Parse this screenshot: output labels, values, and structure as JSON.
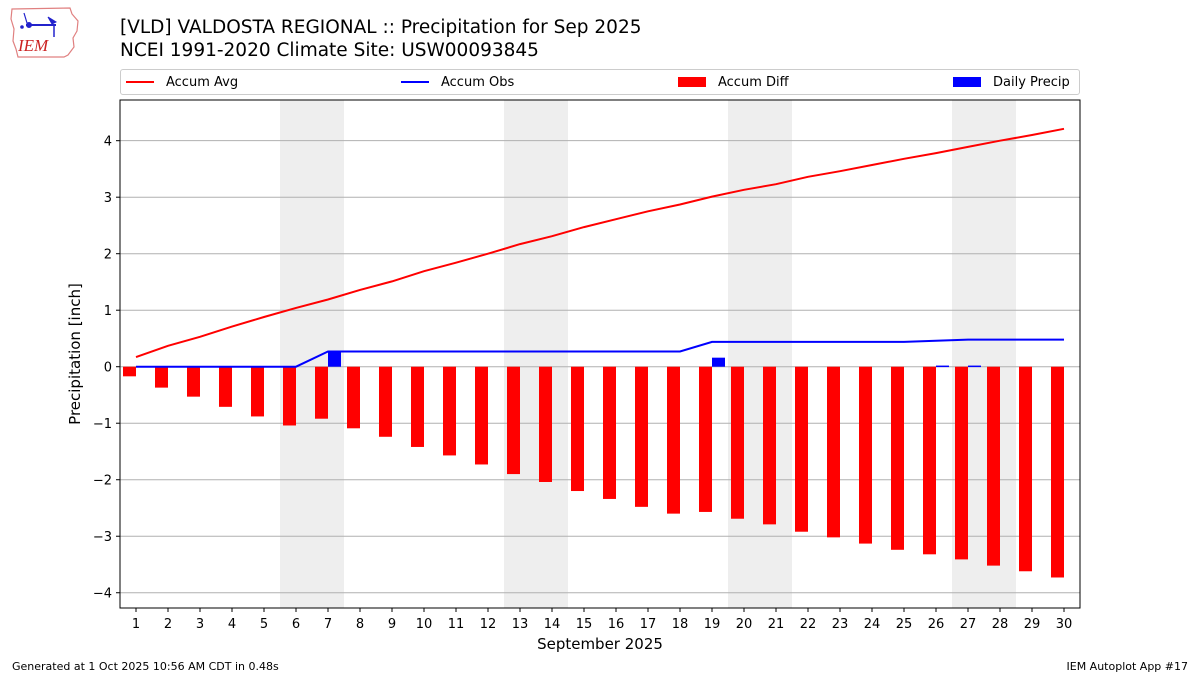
{
  "logo": {
    "text": "IEM"
  },
  "header": {
    "title_line1": "[VLD] VALDOSTA REGIONAL :: Precipitation for Sep 2025",
    "title_line2": "NCEI 1991-2020 Climate Site: USW00093845"
  },
  "legend": {
    "items": [
      {
        "label": "Accum Avg",
        "kind": "line",
        "color": "#ff0000"
      },
      {
        "label": "Accum Obs",
        "kind": "line",
        "color": "#0000ff"
      },
      {
        "label": "Accum Diff",
        "kind": "bar",
        "color": "#ff0000"
      },
      {
        "label": "Daily Precip",
        "kind": "bar",
        "color": "#0000ff"
      }
    ]
  },
  "chart_data": {
    "type": "bar",
    "title": "[VLD] VALDOSTA REGIONAL :: Precipitation for Sep 2025",
    "subtitle": "NCEI 1991-2020 Climate Site: USW00093845",
    "xlabel": "September 2025",
    "ylabel": "Precipitation [inch]",
    "xlim": [
      0.5,
      30.5
    ],
    "ylim": [
      -4.27,
      4.72
    ],
    "yticks": [
      -4,
      -3,
      -2,
      -1,
      0,
      1,
      2,
      3,
      4
    ],
    "ytick_labels": [
      "−4",
      "−3",
      "−2",
      "−1",
      "0",
      "1",
      "2",
      "3",
      "4"
    ],
    "grid": "horizontal",
    "legend_position": "top",
    "categories": [
      "1",
      "2",
      "3",
      "4",
      "5",
      "6",
      "7",
      "8",
      "9",
      "10",
      "11",
      "12",
      "13",
      "14",
      "15",
      "16",
      "17",
      "18",
      "19",
      "20",
      "21",
      "22",
      "23",
      "24",
      "25",
      "26",
      "27",
      "28",
      "29",
      "30"
    ],
    "weekend_shading": [
      [
        6,
        7
      ],
      [
        13,
        14
      ],
      [
        20,
        21
      ],
      [
        27,
        28
      ]
    ],
    "shade_color": "#eeeeee",
    "series": [
      {
        "name": "Accum Avg",
        "type": "line",
        "color": "#ff0000",
        "values": [
          0.17,
          0.37,
          0.53,
          0.71,
          0.88,
          1.04,
          1.19,
          1.36,
          1.51,
          1.69,
          1.84,
          2.0,
          2.17,
          2.31,
          2.47,
          2.61,
          2.75,
          2.87,
          3.01,
          3.13,
          3.23,
          3.36,
          3.46,
          3.57,
          3.68,
          3.78,
          3.89,
          4.0,
          4.1,
          4.21
        ]
      },
      {
        "name": "Accum Obs",
        "type": "line",
        "color": "#0000ff",
        "values": [
          0,
          0,
          0,
          0,
          0,
          0,
          0.27,
          0.27,
          0.27,
          0.27,
          0.27,
          0.27,
          0.27,
          0.27,
          0.27,
          0.27,
          0.27,
          0.27,
          0.44,
          0.44,
          0.44,
          0.44,
          0.44,
          0.44,
          0.44,
          0.46,
          0.48,
          0.48,
          0.48,
          0.48
        ]
      },
      {
        "name": "Accum Diff",
        "type": "bar",
        "color": "#ff0000",
        "values": [
          -0.17,
          -0.37,
          -0.53,
          -0.71,
          -0.88,
          -1.04,
          -0.92,
          -1.09,
          -1.24,
          -1.42,
          -1.57,
          -1.73,
          -1.9,
          -2.04,
          -2.2,
          -2.34,
          -2.48,
          -2.6,
          -2.57,
          -2.69,
          -2.79,
          -2.92,
          -3.02,
          -3.13,
          -3.24,
          -3.32,
          -3.41,
          -3.52,
          -3.62,
          -3.73
        ]
      },
      {
        "name": "Daily Precip",
        "type": "bar",
        "color": "#0000ff",
        "values": [
          0,
          0,
          0,
          0,
          0,
          0,
          0.27,
          0,
          0,
          0,
          0,
          0,
          0,
          0,
          0,
          0,
          0,
          0,
          0.16,
          0,
          0,
          0,
          0,
          0,
          0,
          0.02,
          0.02,
          0,
          0,
          0
        ]
      }
    ]
  },
  "footer": {
    "generated": "Generated at 1 Oct 2025 10:56 AM CDT in 0.48s",
    "app": "IEM Autoplot App #17"
  }
}
